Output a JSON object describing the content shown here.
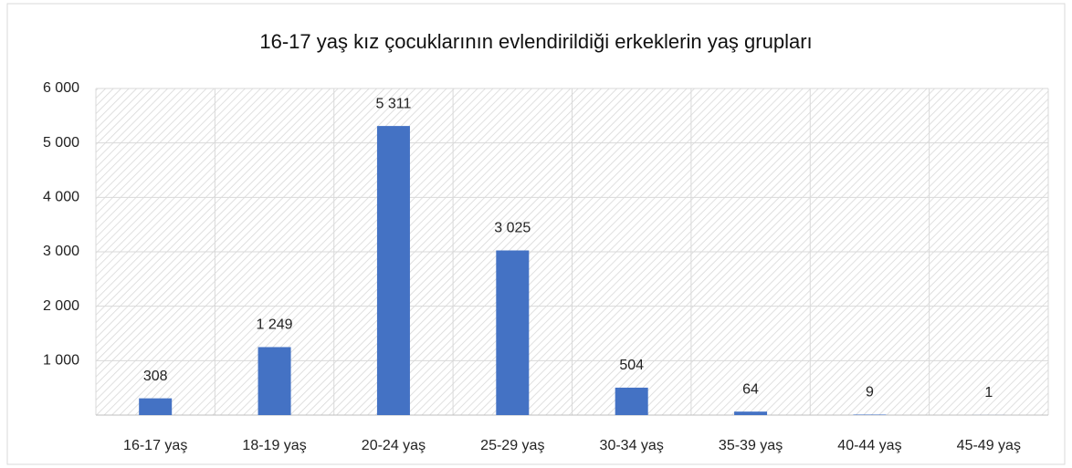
{
  "chart_data": {
    "type": "bar",
    "title": "16-17 yaş kız çocuklarının evlendirildiği erkeklerin yaş grupları",
    "categories": [
      "16-17 yaş",
      "18-19 yaş",
      "20-24 yaş",
      "25-29 yaş",
      "30-34 yaş",
      "35-39 yaş",
      "40-44 yaş",
      "45-49 yaş"
    ],
    "values": [
      308,
      1249,
      5311,
      3025,
      504,
      64,
      9,
      1
    ],
    "value_labels": [
      "308",
      "1 249",
      "5 311",
      "3 025",
      "504",
      "64",
      "9",
      "1"
    ],
    "color": "#4472c4",
    "ylim": [
      0,
      6000
    ],
    "yticks": [
      {
        "value": 1000,
        "label": "1 000"
      },
      {
        "value": 2000,
        "label": "2 000"
      },
      {
        "value": 3000,
        "label": "3 000"
      },
      {
        "value": 4000,
        "label": "4 000"
      },
      {
        "value": 5000,
        "label": "5 000"
      },
      {
        "value": 6000,
        "label": "6 000"
      }
    ],
    "grid": true
  }
}
